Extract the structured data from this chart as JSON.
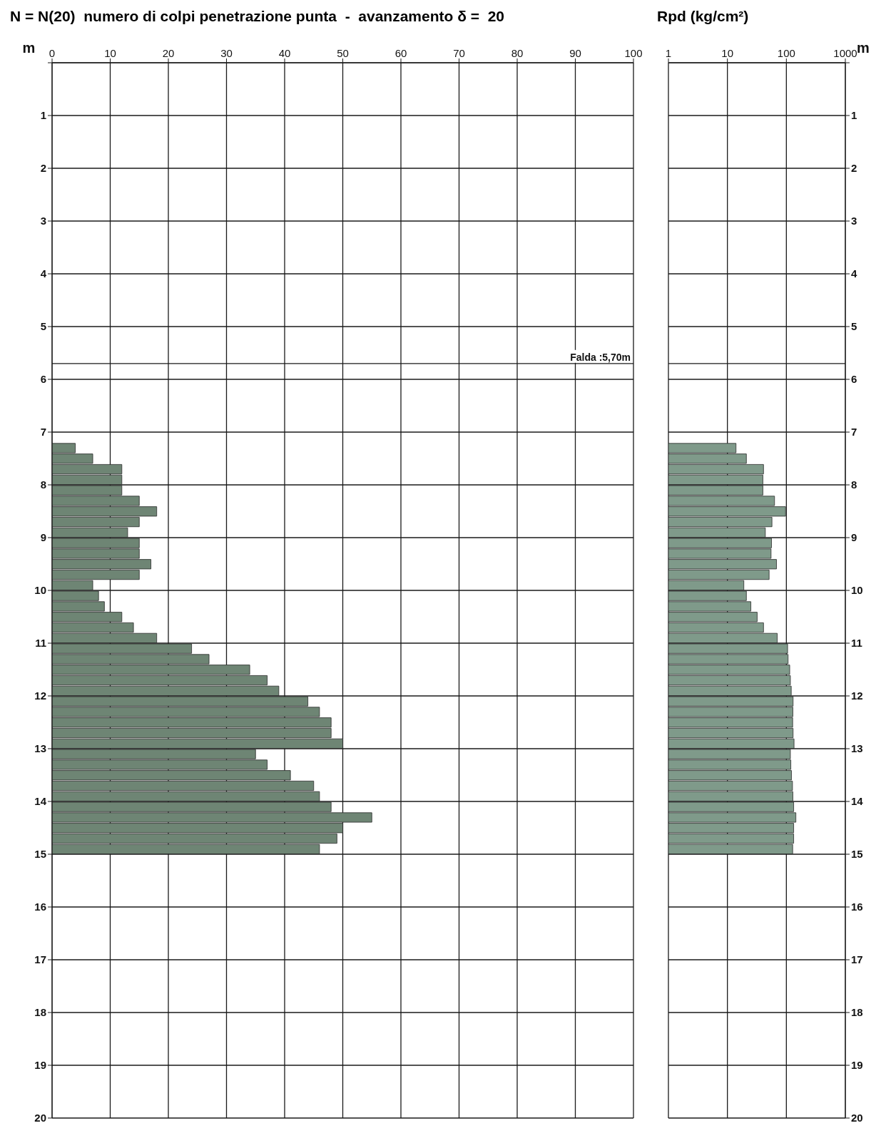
{
  "chart_data": [
    {
      "type": "bar",
      "orientation": "horizontal",
      "title": "N = N(20)  numero di colpi penetrazione punta  -  avanzamento δ =  20",
      "ylabel": "m",
      "x": [
        7.3,
        7.5,
        7.7,
        7.9,
        8.1,
        8.3,
        8.5,
        8.7,
        8.9,
        9.1,
        9.3,
        9.5,
        9.7,
        9.9,
        10.1,
        10.3,
        10.5,
        10.7,
        10.9,
        11.1,
        11.3,
        11.5,
        11.7,
        11.9,
        12.1,
        12.3,
        12.5,
        12.7,
        12.9,
        13.1,
        13.3,
        13.5,
        13.7,
        13.9,
        14.1,
        14.3,
        14.5,
        14.7,
        14.9
      ],
      "values": [
        4,
        7,
        12,
        12,
        12,
        15,
        18,
        15,
        13,
        15,
        15,
        17,
        15,
        7,
        8,
        9,
        12,
        14,
        18,
        24,
        27,
        34,
        37,
        39,
        44,
        46,
        48,
        48,
        50,
        35,
        37,
        41,
        45,
        46,
        48,
        55,
        50,
        49,
        46
      ],
      "color": "#6e8574",
      "xlim": [
        0,
        100
      ],
      "xticks": [
        0,
        10,
        20,
        30,
        40,
        50,
        60,
        70,
        80,
        90,
        100
      ],
      "ylim": [
        20,
        0
      ],
      "yticks": [
        {
          "value": 0,
          "label": null
        },
        1,
        2,
        3,
        4,
        5,
        6,
        7,
        8,
        9,
        10,
        11,
        12,
        13,
        14,
        15,
        16,
        17,
        18,
        19,
        20
      ],
      "grid": true,
      "ref_lines": [
        {
          "axis": "y",
          "value": 5.7,
          "label": "Falda :5,70m"
        }
      ]
    },
    {
      "type": "bar",
      "orientation": "horizontal",
      "title": "Rpd (kg/cm²)",
      "ylabel": "m",
      "log": "x",
      "x": [
        7.3,
        7.5,
        7.7,
        7.9,
        8.1,
        8.3,
        8.5,
        8.7,
        8.9,
        9.1,
        9.3,
        9.5,
        9.7,
        9.9,
        10.1,
        10.3,
        10.5,
        10.7,
        10.9,
        11.1,
        11.3,
        11.5,
        11.7,
        11.9,
        12.1,
        12.3,
        12.5,
        12.7,
        12.9,
        13.1,
        13.3,
        13.5,
        13.7,
        13.9,
        14.1,
        14.3,
        14.5,
        14.7,
        14.9
      ],
      "values": [
        14,
        21,
        41,
        40,
        40,
        63,
        97,
        57,
        44,
        56,
        55,
        68,
        51,
        19,
        21,
        25,
        32,
        41,
        70,
        105,
        107,
        114,
        117,
        121,
        130,
        129,
        128,
        130,
        135,
        117,
        119,
        122,
        127,
        129,
        133,
        145,
        133,
        133,
        128
      ],
      "color": "#7f9a8a",
      "xlim": [
        1,
        1000
      ],
      "xticks": [
        1,
        10,
        100,
        1000
      ],
      "ylim": [
        20,
        0
      ],
      "yticks": [
        {
          "value": 0,
          "label": null
        },
        1,
        2,
        3,
        4,
        5,
        6,
        7,
        8,
        9,
        10,
        11,
        12,
        13,
        14,
        15,
        16,
        17,
        18,
        19,
        20
      ],
      "grid": true,
      "ref_lines": [
        {
          "axis": "y",
          "value": 5.7
        }
      ]
    }
  ]
}
